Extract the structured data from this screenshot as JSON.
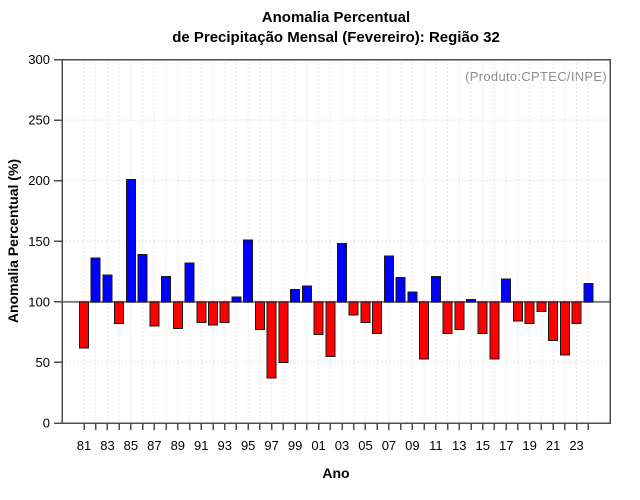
{
  "title": {
    "line1": "Anomalia Percentual",
    "line2": "de Precipitação Mensal (Fevereiro): Região 32"
  },
  "annotation": "(Produto:CPTEC/INPE)",
  "colors": {
    "bar_above": "#0000ff",
    "bar_below": "#ff0000",
    "bar_border": "#1a1a1a",
    "baseline": "#808080",
    "axis": "#4d4d4d",
    "grid": "#cccccc",
    "annotation_text": "#8c8c8c"
  },
  "chart_data": {
    "type": "bar",
    "title": "Anomalia Percentual de Precipitação Mensal (Fevereiro): Região 32",
    "xlabel": "Ano",
    "ylabel": "Anomalia Percentual (%)",
    "ylim": [
      0,
      300
    ],
    "y_ticks": [
      0,
      50,
      100,
      150,
      200,
      250,
      300
    ],
    "baseline": 100,
    "grid": "dotted",
    "legend_position": "none",
    "categories": [
      "81",
      "82",
      "83",
      "84",
      "85",
      "86",
      "87",
      "88",
      "89",
      "90",
      "91",
      "92",
      "93",
      "94",
      "95",
      "96",
      "97",
      "98",
      "99",
      "00",
      "01",
      "02",
      "03",
      "04",
      "05",
      "06",
      "07",
      "08",
      "09",
      "10",
      "11",
      "12",
      "13",
      "14",
      "15",
      "16",
      "17",
      "18",
      "19",
      "20",
      "21",
      "22",
      "23",
      "24"
    ],
    "values": [
      62,
      136,
      122,
      82,
      201,
      139,
      80,
      121,
      78,
      132,
      83,
      81,
      83,
      104,
      151,
      77,
      37,
      50,
      110,
      113,
      73,
      55,
      148,
      89,
      83,
      74,
      138,
      120,
      108,
      53,
      121,
      74,
      77,
      102,
      74,
      53,
      119,
      84,
      82,
      92,
      68,
      56,
      82,
      115
    ]
  }
}
